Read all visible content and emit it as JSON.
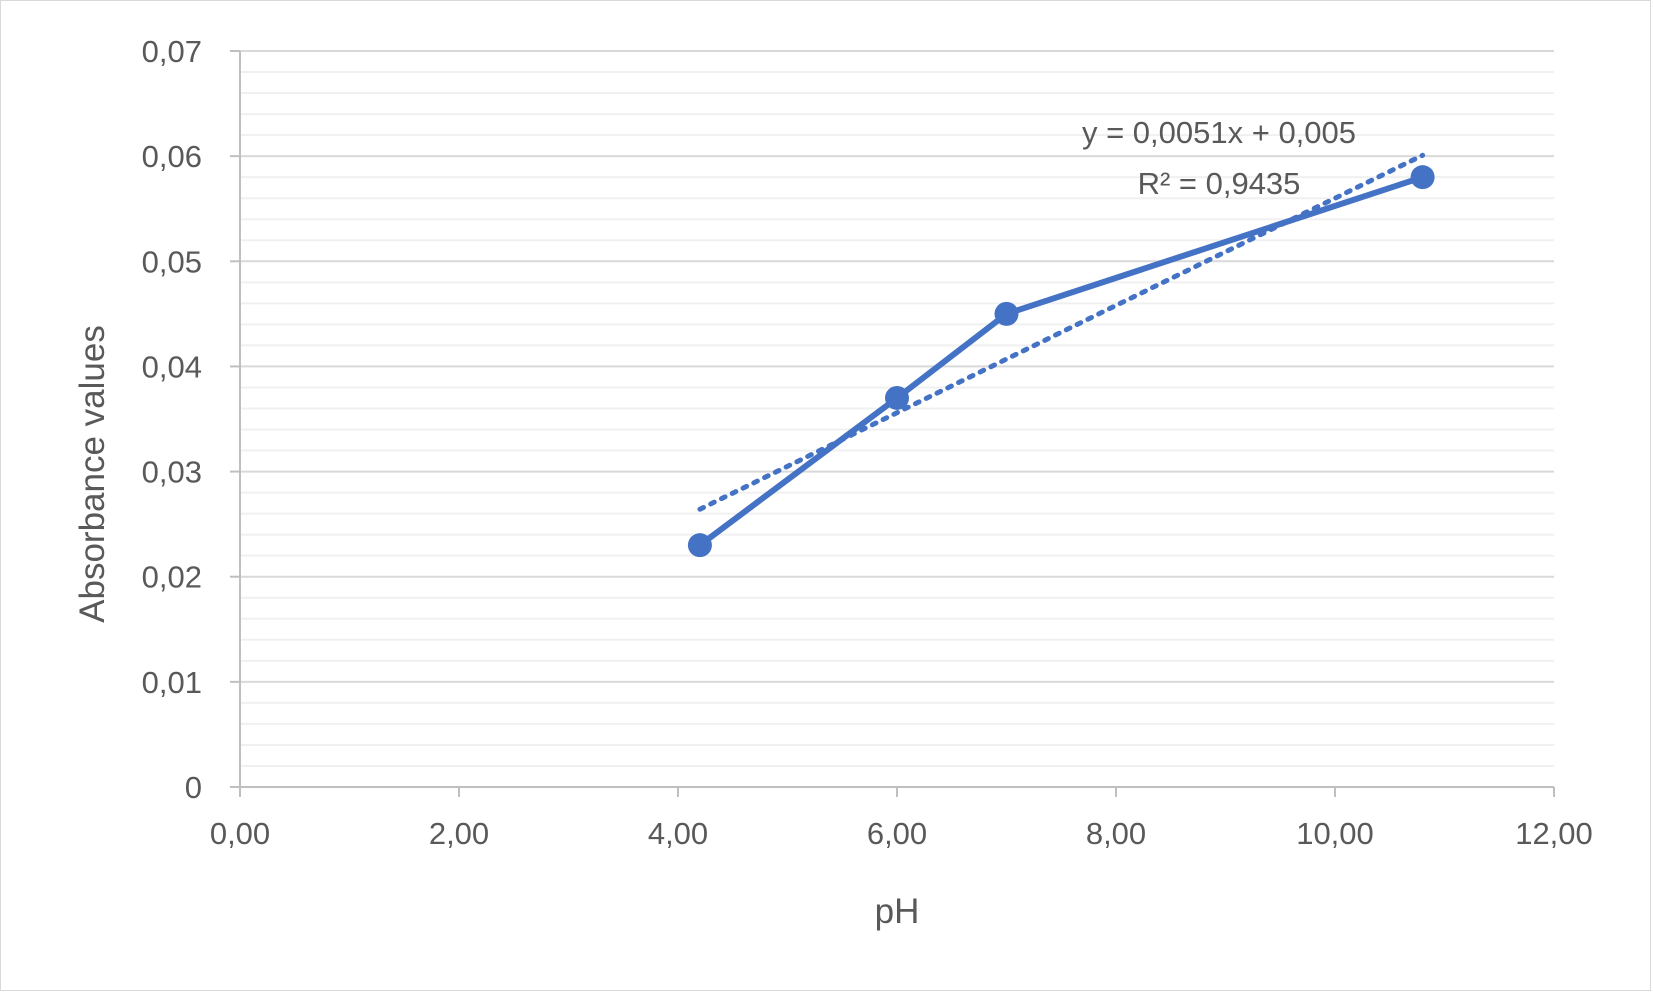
{
  "chart_data": {
    "type": "scatter",
    "title": "",
    "xlabel": "pH",
    "ylabel": "Absorbance values",
    "xlim": [
      0,
      12
    ],
    "ylim": [
      0,
      0.07
    ],
    "x_major_step": 2,
    "y_major_step": 0.01,
    "y_minor_step": 0.002,
    "x_ticks": [
      "0,00",
      "2,00",
      "4,00",
      "6,00",
      "8,00",
      "10,00",
      "12,00"
    ],
    "y_ticks": [
      "0",
      "0,01",
      "0,02",
      "0,03",
      "0,04",
      "0,05",
      "0,06",
      "0,07"
    ],
    "grid": true,
    "legend": "none",
    "series": [
      {
        "color": "#4472c4",
        "marker": "circle",
        "line": "solid",
        "x": [
          4.2,
          6.0,
          7.0,
          10.8
        ],
        "y": [
          0.023,
          0.037,
          0.045,
          0.058
        ]
      }
    ],
    "trendline": {
      "type": "linear",
      "style": "dotted",
      "color": "#4472c4",
      "slope": 0.0051,
      "intercept": 0.005,
      "x_range": [
        4.2,
        10.8
      ],
      "equation_label": "y = 0,0051x + 0,005",
      "r2_label": "R² = 0,9435"
    }
  }
}
